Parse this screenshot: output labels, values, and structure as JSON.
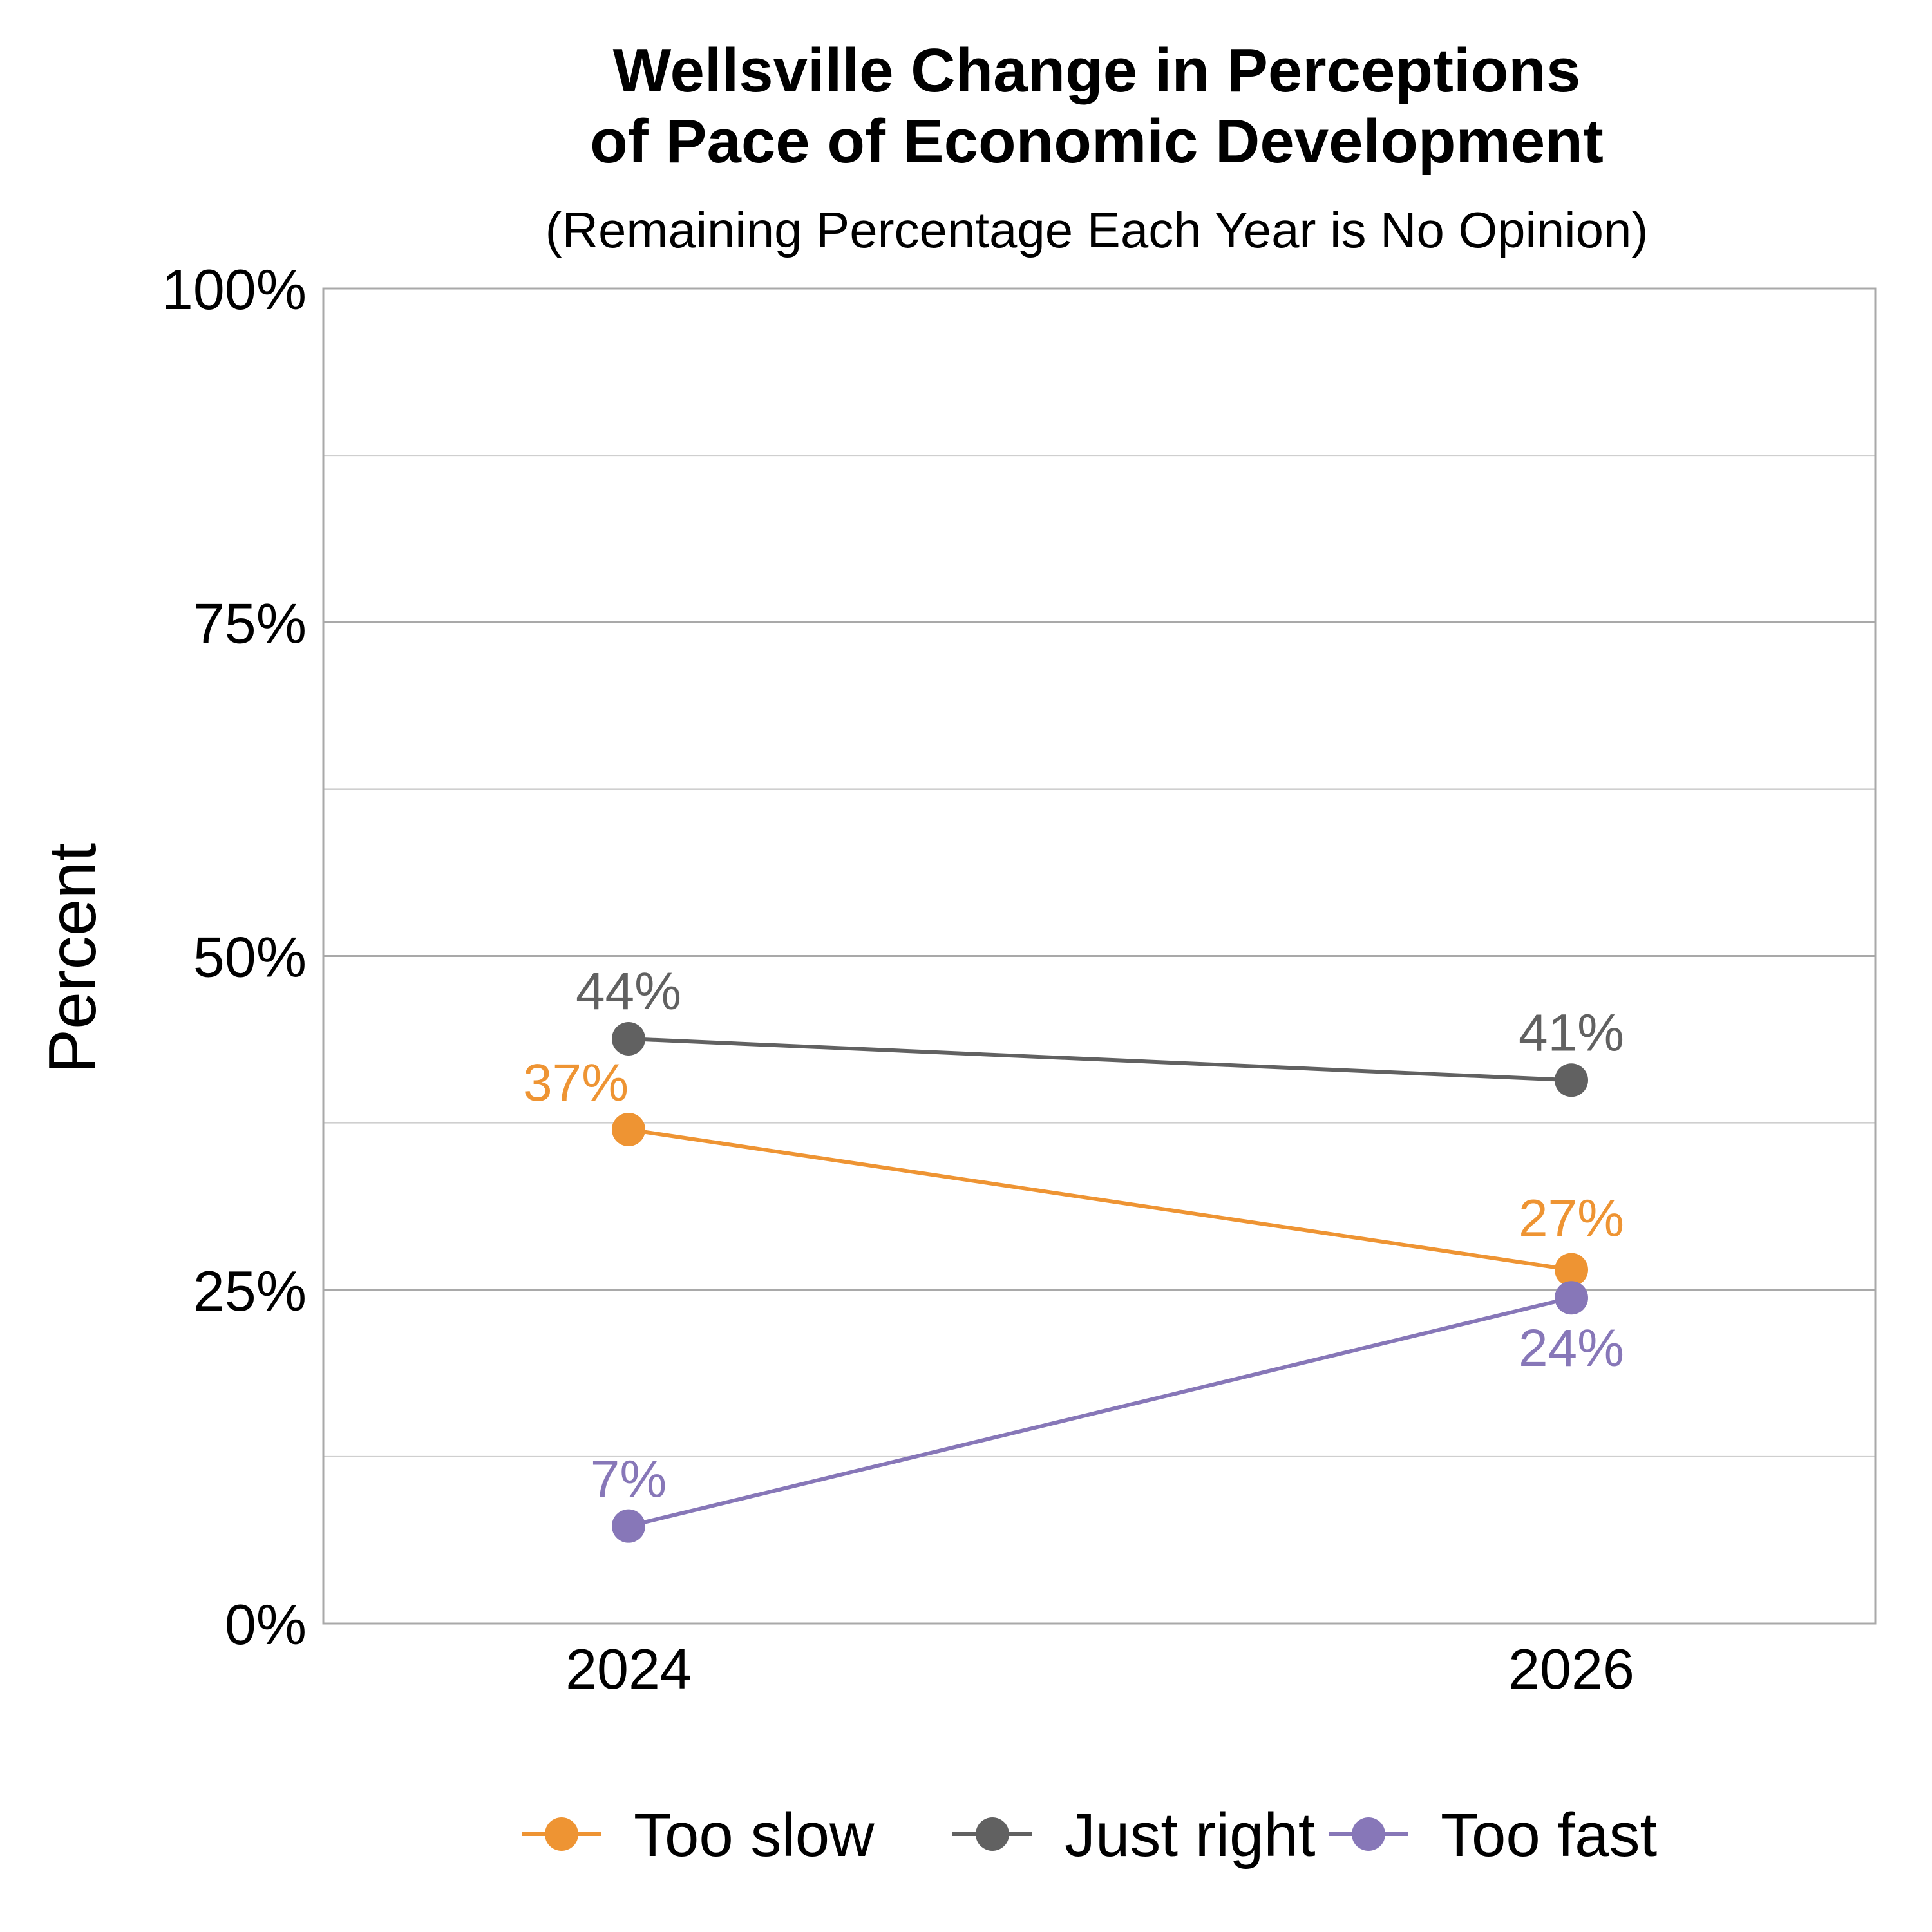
{
  "chart_data": {
    "type": "line",
    "title_lines": [
      "Wellsville Change in Perceptions",
      "of Pace of Economic Development"
    ],
    "subtitle": "(Remaining Percentage Each Year is No Opinion)",
    "xlabel": "",
    "ylabel": "Percent",
    "x": [
      "2024",
      "2026"
    ],
    "ylim": [
      0,
      100
    ],
    "y_ticks": [
      0,
      25,
      50,
      75,
      100
    ],
    "y_tick_labels": [
      "0%",
      "25%",
      "50%",
      "75%",
      "100%"
    ],
    "minor_gridlines": [
      12.5,
      37.5,
      62.5,
      87.5
    ],
    "grid": true,
    "legend_position": "bottom",
    "series": [
      {
        "name": "Too slow",
        "color": "#EE9433",
        "values": [
          37,
          26.5
        ],
        "labels": [
          "37%",
          "27%"
        ]
      },
      {
        "name": "Just right",
        "color": "#616161",
        "values": [
          43.8,
          40.7
        ],
        "labels": [
          "44%",
          "41%"
        ]
      },
      {
        "name": "Too fast",
        "color": "#8777B8",
        "values": [
          7.3,
          24.4
        ],
        "labels": [
          "7%",
          "24%"
        ]
      }
    ]
  }
}
